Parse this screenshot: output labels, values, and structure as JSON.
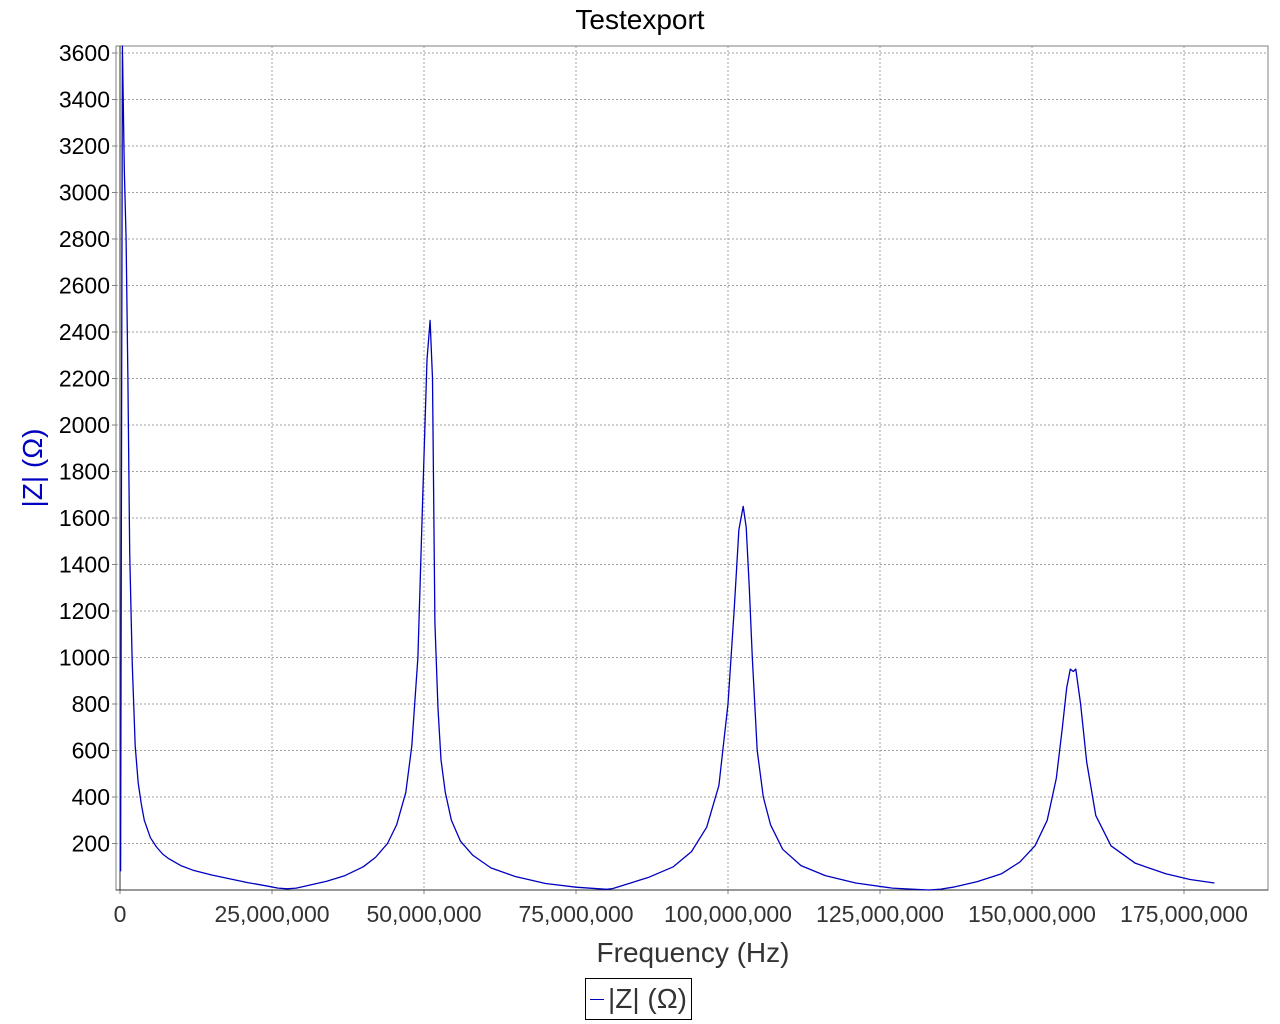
{
  "chart_data": {
    "type": "line",
    "title": "Testexport",
    "xlabel": "Frequency (Hz)",
    "ylabel": "|Z| (Ω)",
    "xlim": [
      0,
      185000000
    ],
    "ylim": [
      0,
      3640
    ],
    "x_ticks": [
      0,
      25000000,
      50000000,
      75000000,
      100000000,
      125000000,
      150000000,
      175000000
    ],
    "x_tick_labels": [
      "0",
      "25,000,000",
      "50,000,000",
      "75,000,000",
      "100,000,000",
      "125,000,000",
      "150,000,000",
      "175,000,000"
    ],
    "y_ticks": [
      200,
      400,
      600,
      800,
      1000,
      1200,
      1400,
      1600,
      1800,
      2000,
      2200,
      2400,
      2600,
      2800,
      3000,
      3200,
      3400,
      3600
    ],
    "y_tick_labels": [
      "200",
      "400",
      "600",
      "800",
      "1000",
      "1200",
      "1400",
      "1600",
      "1800",
      "2000",
      "2200",
      "2400",
      "2600",
      "2800",
      "3000",
      "3200",
      "3400",
      "3600"
    ],
    "grid": true,
    "legend_position": "bottom-center",
    "line_color": "#0000c0",
    "series": [
      {
        "name": "|Z| (Ω)",
        "x": [
          100000,
          400000,
          700000,
          1000000,
          1300000,
          1600000,
          2000000,
          2500000,
          3000000,
          3500000,
          4000000,
          5000000,
          6000000,
          7000000,
          8000000,
          10000000,
          12000000,
          15000000,
          18000000,
          21000000,
          24000000,
          26000000,
          27500000,
          29000000,
          31000000,
          34000000,
          37000000,
          40000000,
          42000000,
          44000000,
          45500000,
          47000000,
          48000000,
          49000000,
          49800000,
          50500000,
          51000000,
          51400000,
          51800000,
          52300000,
          52800000,
          53500000,
          54500000,
          56000000,
          58000000,
          61000000,
          65000000,
          70000000,
          75000000,
          80000000,
          81000000,
          83000000,
          87000000,
          91000000,
          94000000,
          96500000,
          98500000,
          100000000,
          101000000,
          101800000,
          102500000,
          103000000,
          103500000,
          104000000,
          104800000,
          105800000,
          107000000,
          109000000,
          112000000,
          116000000,
          121000000,
          127000000,
          133000000,
          135000000,
          137000000,
          141000000,
          145000000,
          148000000,
          150500000,
          152500000,
          154000000,
          155000000,
          155700000,
          156300000,
          156800000,
          157200000,
          158000000,
          159000000,
          160500000,
          163000000,
          167000000,
          172000000,
          176000000,
          180000000
        ],
        "y": [
          80,
          3640,
          3100,
          2800,
          2200,
          1450,
          980,
          620,
          460,
          370,
          300,
          225,
          185,
          155,
          135,
          105,
          85,
          65,
          48,
          32,
          18,
          8,
          5,
          8,
          20,
          38,
          62,
          100,
          140,
          200,
          280,
          420,
          620,
          1000,
          1700,
          2280,
          2450,
          2200,
          1150,
          780,
          560,
          420,
          300,
          210,
          150,
          95,
          58,
          28,
          12,
          3,
          6,
          22,
          55,
          100,
          165,
          270,
          450,
          800,
          1200,
          1550,
          1650,
          1560,
          1300,
          1000,
          600,
          400,
          280,
          175,
          105,
          62,
          30,
          8,
          0,
          4,
          12,
          36,
          70,
          120,
          190,
          300,
          480,
          700,
          870,
          950,
          940,
          950,
          800,
          550,
          320,
          190,
          115,
          70,
          45,
          30
        ]
      }
    ]
  }
}
